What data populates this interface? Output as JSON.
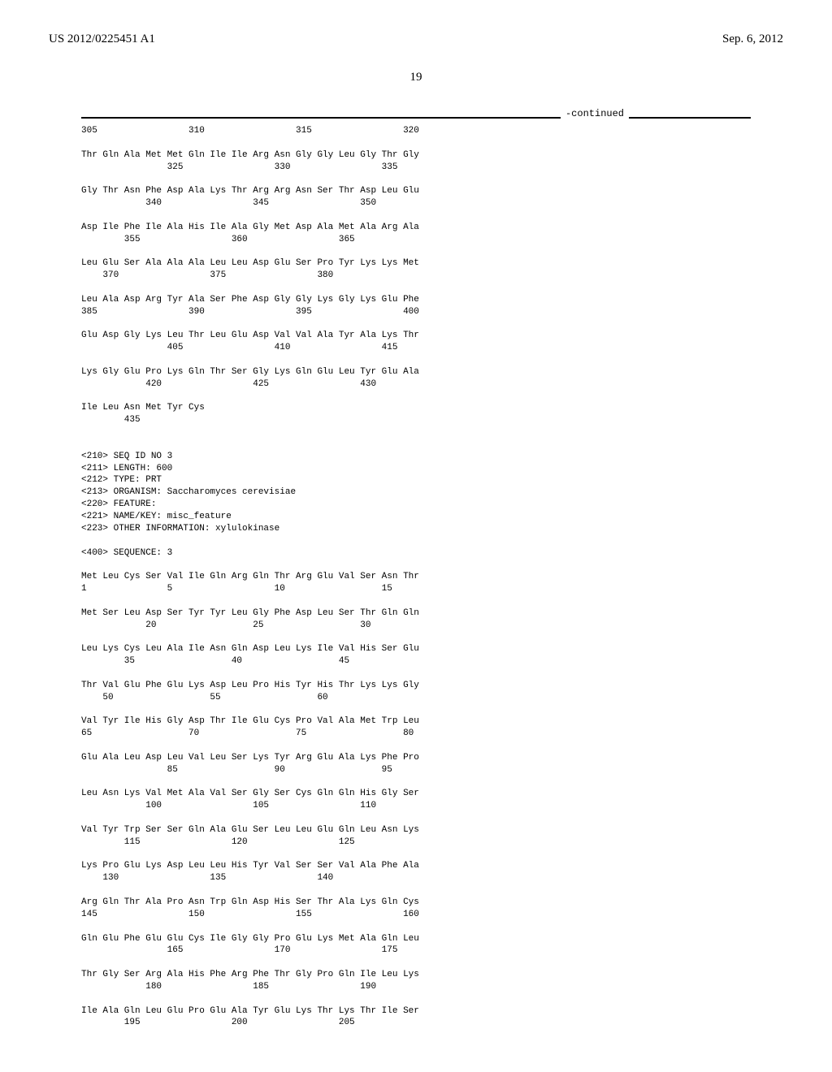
{
  "header": {
    "left": "US 2012/0225451 A1",
    "right": "Sep. 6, 2012"
  },
  "page_number": "19",
  "continued_label": "-continued",
  "sequence_text": "305                 310                 315                 320\n\nThr Gln Ala Met Met Gln Ile Ile Arg Asn Gly Gly Leu Gly Thr Gly\n                325                 330                 335\n\nGly Thr Asn Phe Asp Ala Lys Thr Arg Arg Asn Ser Thr Asp Leu Glu\n            340                 345                 350\n\nAsp Ile Phe Ile Ala His Ile Ala Gly Met Asp Ala Met Ala Arg Ala\n        355                 360                 365\n\nLeu Glu Ser Ala Ala Ala Leu Leu Asp Glu Ser Pro Tyr Lys Lys Met\n    370                 375                 380\n\nLeu Ala Asp Arg Tyr Ala Ser Phe Asp Gly Gly Lys Gly Lys Glu Phe\n385                 390                 395                 400\n\nGlu Asp Gly Lys Leu Thr Leu Glu Asp Val Val Ala Tyr Ala Lys Thr\n                405                 410                 415\n\nLys Gly Glu Pro Lys Gln Thr Ser Gly Lys Gln Glu Leu Tyr Glu Ala\n            420                 425                 430\n\nIle Leu Asn Met Tyr Cys\n        435\n\n\n<210> SEQ ID NO 3\n<211> LENGTH: 600\n<212> TYPE: PRT\n<213> ORGANISM: Saccharomyces cerevisiae\n<220> FEATURE:\n<221> NAME/KEY: misc_feature\n<223> OTHER INFORMATION: xylulokinase\n\n<400> SEQUENCE: 3\n\nMet Leu Cys Ser Val Ile Gln Arg Gln Thr Arg Glu Val Ser Asn Thr\n1               5                   10                  15\n\nMet Ser Leu Asp Ser Tyr Tyr Leu Gly Phe Asp Leu Ser Thr Gln Gln\n            20                  25                  30\n\nLeu Lys Cys Leu Ala Ile Asn Gln Asp Leu Lys Ile Val His Ser Glu\n        35                  40                  45\n\nThr Val Glu Phe Glu Lys Asp Leu Pro His Tyr His Thr Lys Lys Gly\n    50                  55                  60\n\nVal Tyr Ile His Gly Asp Thr Ile Glu Cys Pro Val Ala Met Trp Leu\n65                  70                  75                  80\n\nGlu Ala Leu Asp Leu Val Leu Ser Lys Tyr Arg Glu Ala Lys Phe Pro\n                85                  90                  95\n\nLeu Asn Lys Val Met Ala Val Ser Gly Ser Cys Gln Gln His Gly Ser\n            100                 105                 110\n\nVal Tyr Trp Ser Ser Gln Ala Glu Ser Leu Leu Glu Gln Leu Asn Lys\n        115                 120                 125\n\nLys Pro Glu Lys Asp Leu Leu His Tyr Val Ser Ser Val Ala Phe Ala\n    130                 135                 140\n\nArg Gln Thr Ala Pro Asn Trp Gln Asp His Ser Thr Ala Lys Gln Cys\n145                 150                 155                 160\n\nGln Glu Phe Glu Glu Cys Ile Gly Gly Pro Glu Lys Met Ala Gln Leu\n                165                 170                 175\n\nThr Gly Ser Arg Ala His Phe Arg Phe Thr Gly Pro Gln Ile Leu Lys\n            180                 185                 190\n\nIle Ala Gln Leu Glu Pro Glu Ala Tyr Glu Lys Thr Lys Thr Ile Ser\n        195                 200                 205"
}
